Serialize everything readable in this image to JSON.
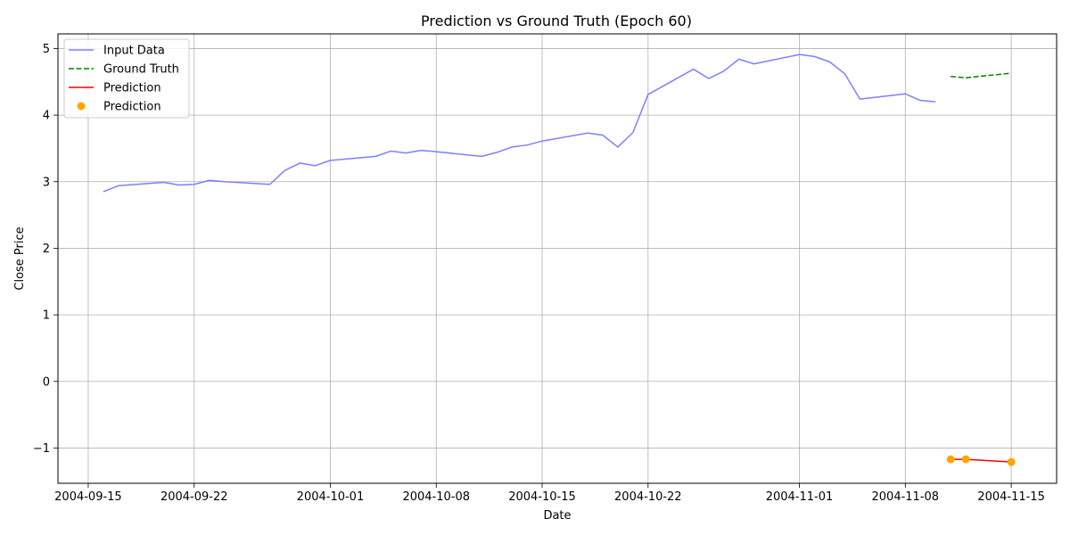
{
  "chart_data": {
    "type": "line",
    "title": "Prediction vs Ground Truth (Epoch 60)",
    "xlabel": "Date",
    "ylabel": "Close Price",
    "x_ticks": [
      "2004-09-15",
      "2004-09-22",
      "2004-10-01",
      "2004-10-08",
      "2004-10-15",
      "2004-10-22",
      "2004-11-01",
      "2004-11-08",
      "2004-11-15"
    ],
    "y_ticks": [
      -1,
      0,
      1,
      2,
      3,
      4,
      5
    ],
    "xlim": [
      "2004-09-13",
      "2004-11-18"
    ],
    "ylim": [
      -1.53,
      5.22
    ],
    "grid": true,
    "legend_position": "top-left",
    "series": [
      {
        "name": "Input Data",
        "kind": "line",
        "color": "#7f7fff",
        "style": "solid",
        "x": [
          "2004-09-16",
          "2004-09-17",
          "2004-09-20",
          "2004-09-21",
          "2004-09-22",
          "2004-09-23",
          "2004-09-24",
          "2004-09-27",
          "2004-09-28",
          "2004-09-29",
          "2004-09-30",
          "2004-10-01",
          "2004-10-04",
          "2004-10-05",
          "2004-10-06",
          "2004-10-07",
          "2004-10-08",
          "2004-10-11",
          "2004-10-12",
          "2004-10-13",
          "2004-10-14",
          "2004-10-15",
          "2004-10-18",
          "2004-10-19",
          "2004-10-20",
          "2004-10-21",
          "2004-10-22",
          "2004-10-25",
          "2004-10-26",
          "2004-10-27",
          "2004-10-28",
          "2004-10-29",
          "2004-11-01",
          "2004-11-02",
          "2004-11-03",
          "2004-11-04",
          "2004-11-05",
          "2004-11-08",
          "2004-11-09",
          "2004-11-10"
        ],
        "y": [
          2.85,
          2.94,
          2.99,
          2.95,
          2.96,
          3.02,
          3.0,
          2.96,
          3.17,
          3.28,
          3.24,
          3.32,
          3.38,
          3.46,
          3.43,
          3.47,
          3.45,
          3.38,
          3.44,
          3.52,
          3.55,
          3.61,
          3.73,
          3.7,
          3.52,
          3.74,
          4.31,
          4.69,
          4.55,
          4.66,
          4.84,
          4.77,
          4.91,
          4.88,
          4.8,
          4.62,
          4.24,
          4.32,
          4.22,
          4.2
        ]
      },
      {
        "name": "Ground Truth",
        "kind": "line",
        "color": "#008000",
        "style": "dashed",
        "x": [
          "2004-11-11",
          "2004-11-12",
          "2004-11-15"
        ],
        "y": [
          4.58,
          4.56,
          4.63
        ]
      },
      {
        "name": "Prediction",
        "kind": "line",
        "color": "#ff0000",
        "style": "solid",
        "x": [
          "2004-11-11",
          "2004-11-12",
          "2004-11-15"
        ],
        "y": [
          -1.17,
          -1.17,
          -1.21
        ]
      },
      {
        "name": "Prediction",
        "kind": "scatter",
        "color": "#ffa500",
        "x": [
          "2004-11-11",
          "2004-11-12",
          "2004-11-15"
        ],
        "y": [
          -1.17,
          -1.17,
          -1.21
        ]
      }
    ]
  }
}
